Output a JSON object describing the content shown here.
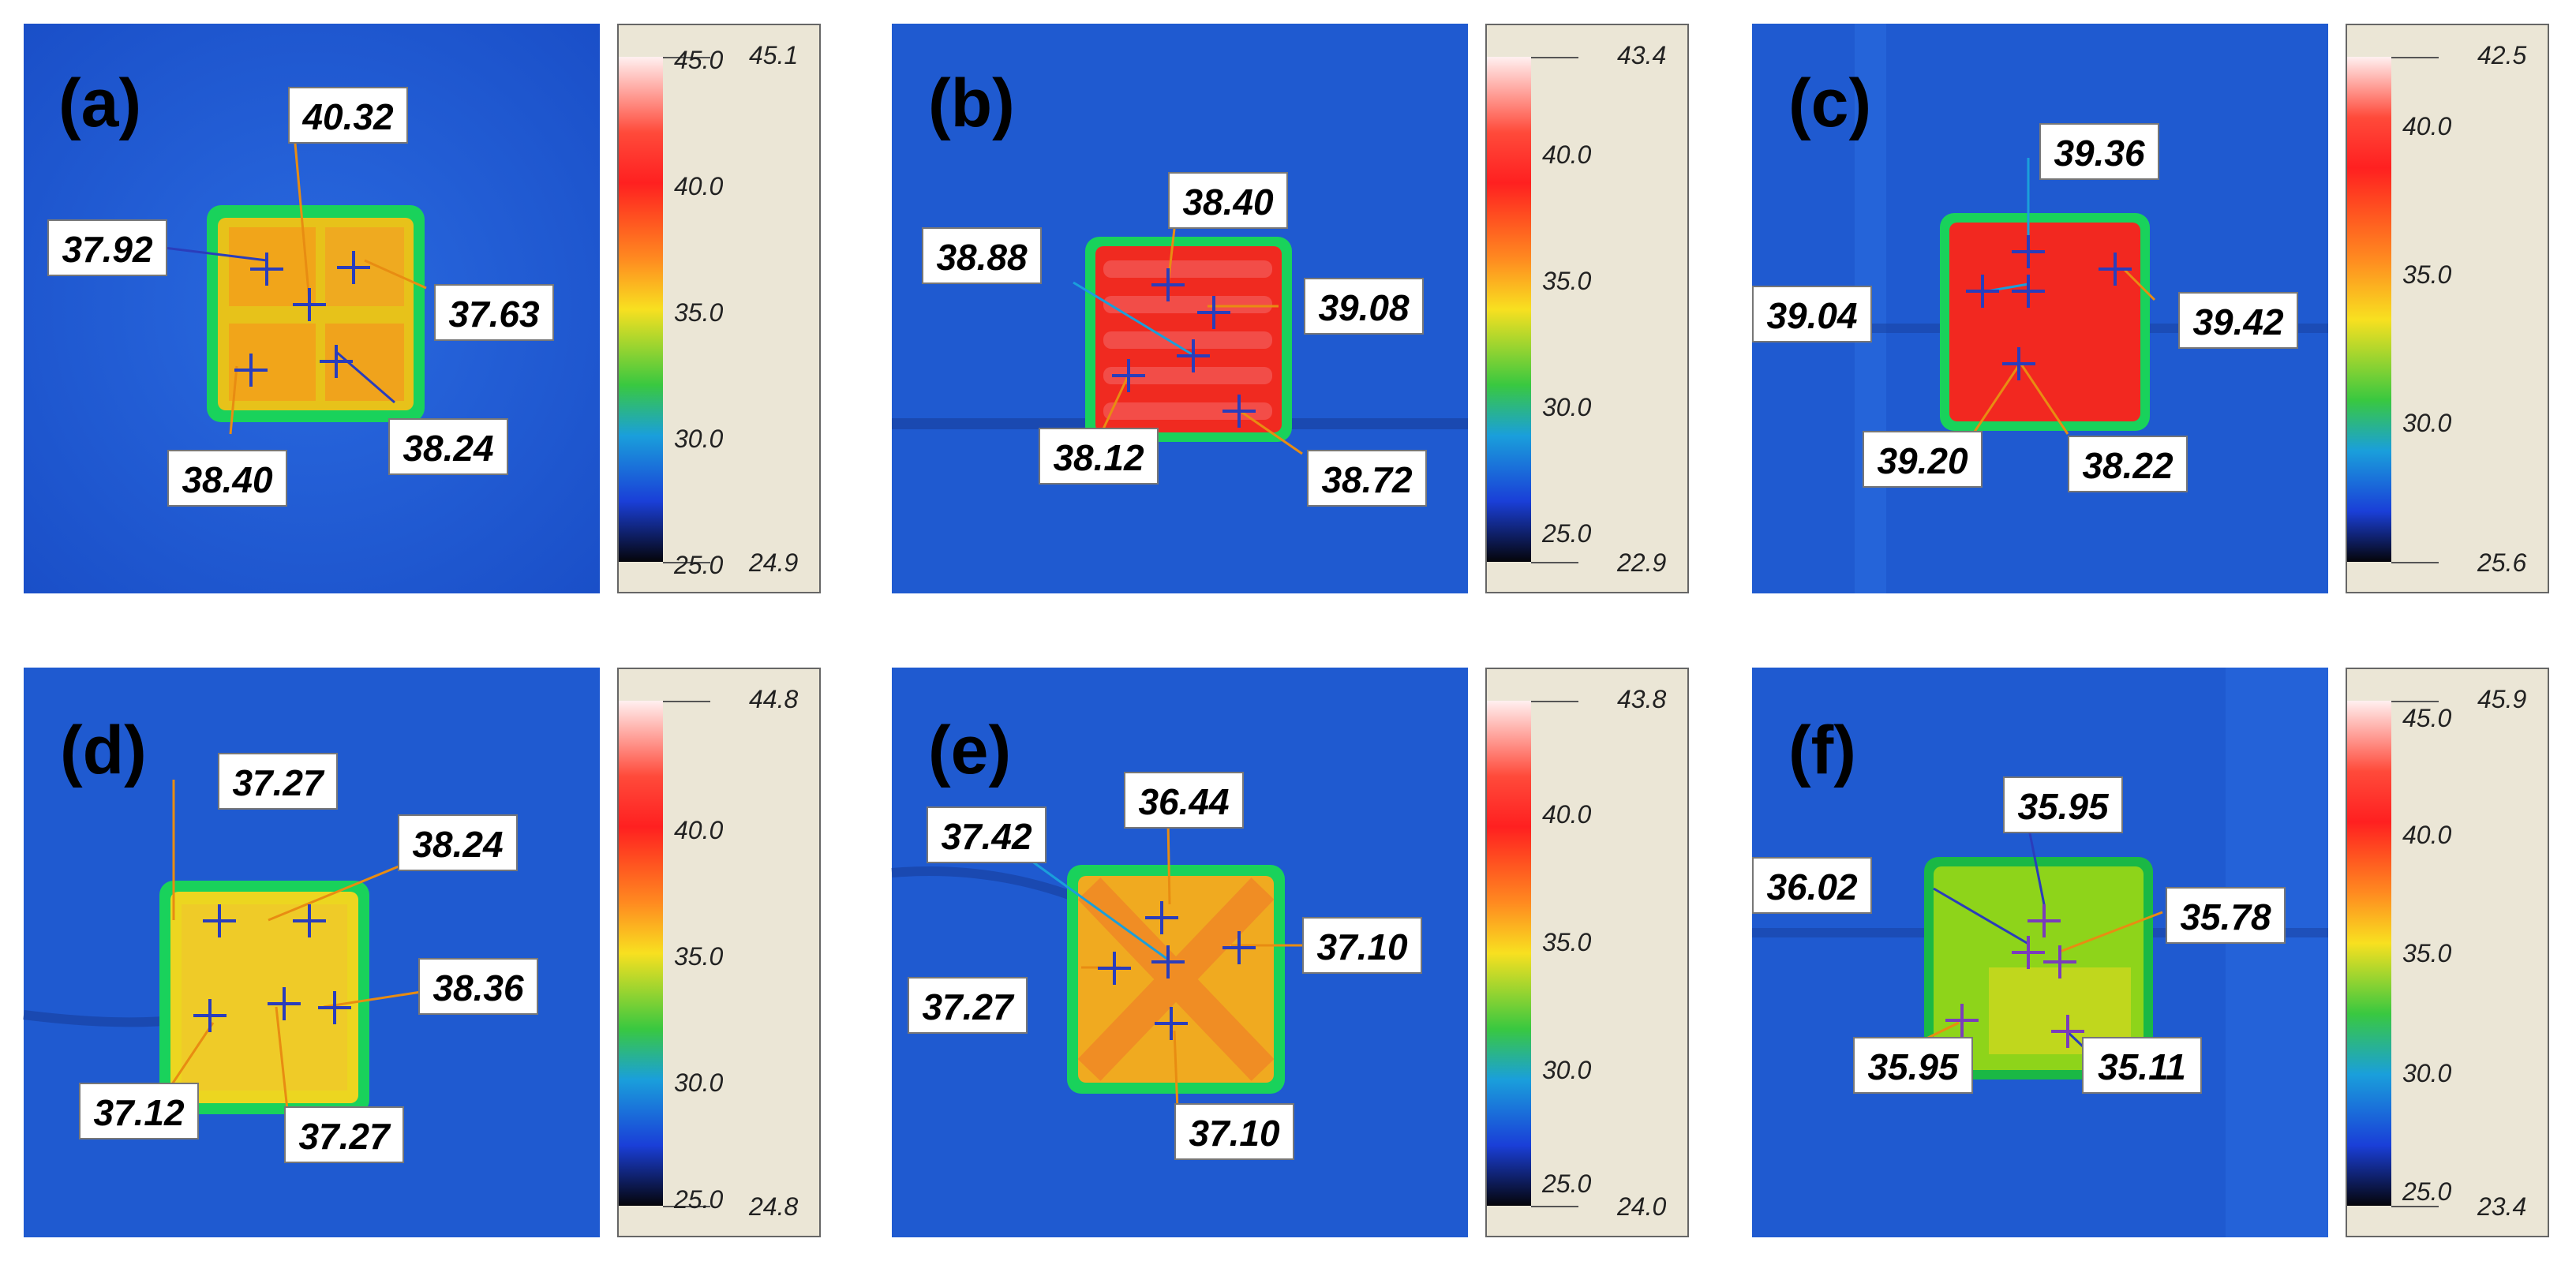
{
  "colors": {
    "background_blue": "#1f5ad0",
    "frame": "#ebe6d6",
    "label_bg": "#ffffff",
    "marker": "#2a3dbb"
  },
  "panels": [
    {
      "label": "(a)",
      "scale": {
        "max": "45.1",
        "min": "24.9",
        "ticks": [
          "45.0",
          "40.0",
          "35.0",
          "30.0",
          "25.0"
        ]
      },
      "readings": [
        "40.32",
        "37.92",
        "37.63",
        "38.40",
        "38.24"
      ]
    },
    {
      "label": "(b)",
      "scale": {
        "max": "43.4",
        "min": "22.9",
        "ticks": [
          "40.0",
          "35.0",
          "30.0",
          "25.0"
        ]
      },
      "readings": [
        "38.40",
        "38.88",
        "39.08",
        "38.12",
        "38.72"
      ]
    },
    {
      "label": "(c)",
      "scale": {
        "max": "42.5",
        "min": "25.6",
        "ticks": [
          "40.0",
          "35.0",
          "30.0"
        ]
      },
      "readings": [
        "39.36",
        "39.04",
        "39.42",
        "39.20",
        "38.22"
      ]
    },
    {
      "label": "(d)",
      "scale": {
        "max": "44.8",
        "min": "24.8",
        "ticks": [
          "40.0",
          "35.0",
          "30.0",
          "25.0"
        ]
      },
      "readings": [
        "37.27",
        "38.24",
        "38.36",
        "37.12",
        "37.27"
      ]
    },
    {
      "label": "(e)",
      "scale": {
        "max": "43.8",
        "min": "24.0",
        "ticks": [
          "40.0",
          "35.0",
          "30.0",
          "25.0"
        ]
      },
      "readings": [
        "36.44",
        "37.42",
        "37.10",
        "37.27",
        "37.10"
      ]
    },
    {
      "label": "(f)",
      "scale": {
        "max": "45.9",
        "min": "23.4",
        "ticks": [
          "45.0",
          "40.0",
          "35.0",
          "30.0",
          "25.0"
        ]
      },
      "readings": [
        "35.95",
        "36.02",
        "35.78",
        "35.95",
        "35.11"
      ]
    }
  ]
}
